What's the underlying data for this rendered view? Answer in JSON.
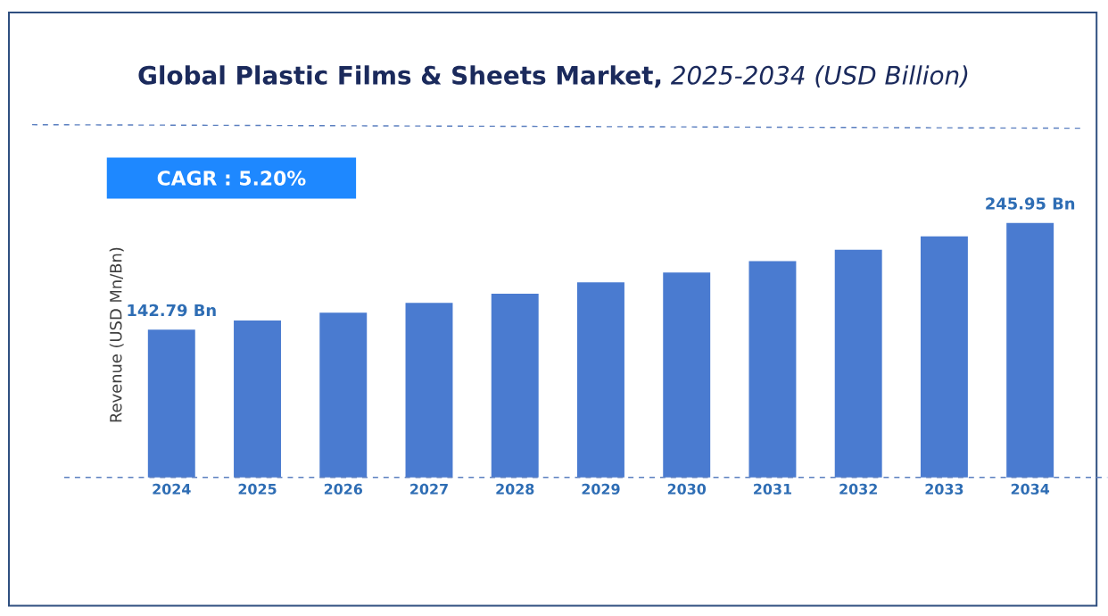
{
  "chart_data": {
    "type": "bar",
    "title": "**Global Plastic Films & Sheets Market,** *2025-2034 (USD Billion)*",
    "ylabel": "Revenue (USD Mn/Bn)",
    "categories": [
      "2024",
      "2025",
      "2026",
      "2027",
      "2028",
      "2029",
      "2030",
      "2031",
      "2032",
      "2033",
      "2034"
    ],
    "values": [
      142.79,
      151.7,
      159.2,
      168.7,
      177.6,
      188.6,
      198.1,
      209.1,
      220.0,
      233.0,
      245.95
    ],
    "value_labels": [
      "142.79 Bn",
      null,
      null,
      null,
      null,
      null,
      null,
      null,
      null,
      null,
      "245.95 Bn"
    ],
    "color": "#4a7bd0",
    "annotations": [
      "CAGR : 5.20%"
    ]
  }
}
